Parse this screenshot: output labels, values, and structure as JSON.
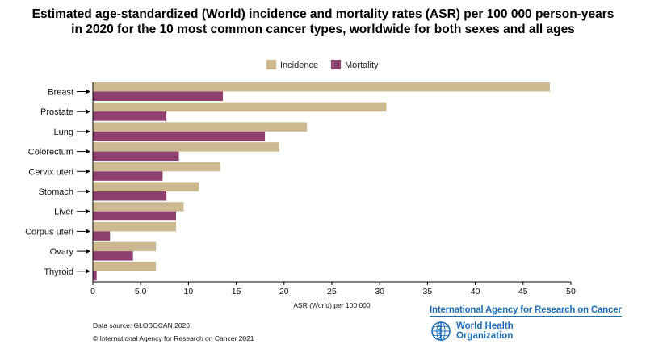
{
  "chart_data": {
    "type": "bar",
    "orientation": "horizontal",
    "title_lines": [
      "Estimated age-standardized (World) incidence and mortality rates (ASR) per 100 000 person-years",
      "in 2020 for the 10 most common cancer types, worldwide for both sexes and all ages"
    ],
    "categories": [
      "Breast",
      "Prostate",
      "Lung",
      "Colorectum",
      "Cervix uteri",
      "Stomach",
      "Liver",
      "Corpus uteri",
      "Ovary",
      "Thyroid"
    ],
    "series": [
      {
        "name": "Incidence",
        "color": "#cdb98f",
        "values": [
          47.8,
          30.7,
          22.4,
          19.5,
          13.3,
          11.1,
          9.5,
          8.7,
          6.6,
          6.6
        ]
      },
      {
        "name": "Mortality",
        "color": "#8e416f",
        "values": [
          13.6,
          7.7,
          18.0,
          9.0,
          7.3,
          7.7,
          8.7,
          1.8,
          4.2,
          0.4
        ]
      }
    ],
    "xlabel": "ASR (World) per 100 000",
    "xlim": [
      0,
      50
    ],
    "xticks": [
      0,
      5,
      10,
      15,
      20,
      25,
      30,
      35,
      40,
      45,
      50
    ],
    "xtick_labels": [
      "0",
      "5.0",
      "10",
      "15",
      "20",
      "25",
      "30",
      "35",
      "40",
      "45",
      "50"
    ],
    "legend_position": "top-center",
    "grid": false
  },
  "footer": {
    "source": "Data source: GLOBOCAN 2020",
    "copyright": "© International Agency for Research on Cancer 2021",
    "iarc_label": "International Agency for Research on Cancer",
    "who_line1": "World Health",
    "who_line2": "Organization"
  },
  "colors": {
    "brand_blue": "#1f6fb5",
    "axis": "#000000"
  }
}
